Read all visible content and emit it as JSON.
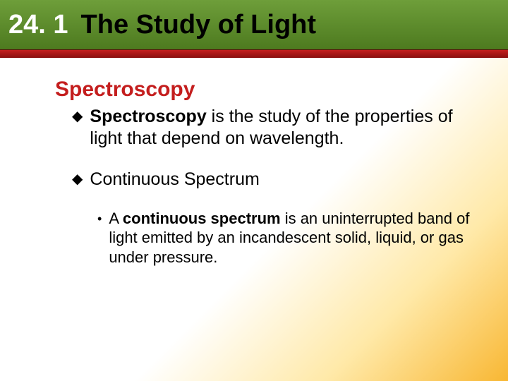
{
  "colors": {
    "header_green_top": "#6e9e3a",
    "header_green_bottom": "#4d7a1f",
    "header_red_top": "#c41e1e",
    "header_red_bottom": "#8a0f0f",
    "section_number_color": "#ffffff",
    "section_title_color": "#000000",
    "topic_heading_color": "#c41e1e",
    "body_text_color": "#000000",
    "gradient_yellow": "#ffe9a8",
    "gradient_orange": "#f8b733"
  },
  "typography": {
    "section_number_fontsize": 38,
    "section_title_fontsize": 38,
    "topic_heading_fontsize": 30,
    "bullet1_fontsize": 25,
    "bullet2_fontsize": 22,
    "font_family": "Arial"
  },
  "header": {
    "section_number": "24. 1",
    "section_title": "The Study of Light"
  },
  "content": {
    "topic_heading": "Spectroscopy",
    "bullets": [
      {
        "bold_lead": "Spectroscopy",
        "rest": " is the study of the properties of light that depend on wavelength."
      },
      {
        "bold_lead": "",
        "rest": "Continuous Spectrum",
        "sub": [
          {
            "pre": "A ",
            "bold": "continuous spectrum",
            "post": " is an uninterrupted band of light emitted by an incandescent solid, liquid, or gas under pressure."
          }
        ]
      }
    ]
  }
}
